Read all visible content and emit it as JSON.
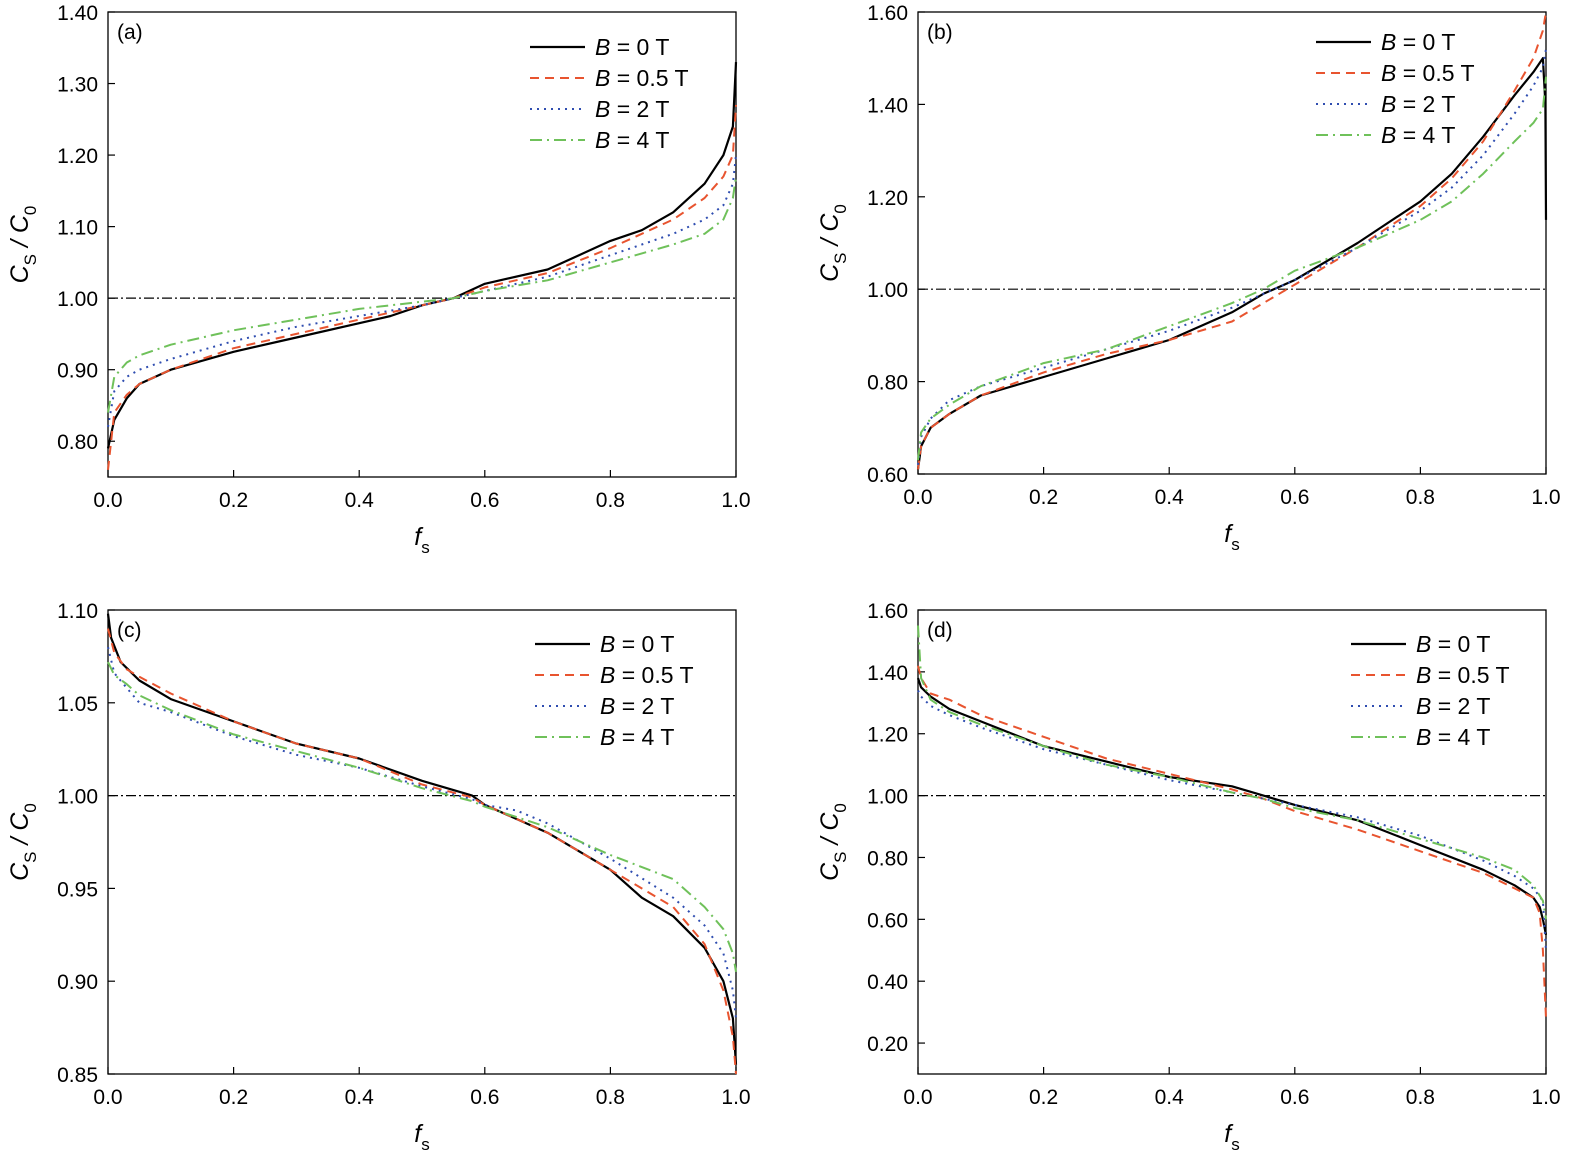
{
  "series_styles": [
    {
      "color": "#000000",
      "dash": "none"
    },
    {
      "color": "#e8542f",
      "dash": "9,6"
    },
    {
      "color": "#2f4db0",
      "dash": "2,5"
    },
    {
      "color": "#6fc15a",
      "dash": "12,5,2,5"
    }
  ],
  "reference_line_color": "#000000",
  "chart_data": [
    {
      "id": "a",
      "type": "line",
      "panel_label": "(a)",
      "xlabel": "f",
      "xlabel_sub": "s",
      "ylabel": "C",
      "ylabel_sub": "S",
      "ylabel_mid": " / C",
      "ylabel_sub2": "0",
      "xlim": [
        0,
        1
      ],
      "ylim": [
        0.75,
        1.4
      ],
      "xticks": [
        0,
        0.2,
        0.4,
        0.6,
        0.8,
        1.0
      ],
      "xtick_labels": [
        "0.0",
        "0.2",
        "0.4",
        "0.6",
        "0.8",
        "1.0"
      ],
      "yticks": [
        0.8,
        0.9,
        1.0,
        1.1,
        1.2,
        1.3,
        1.4
      ],
      "ytick_labels": [
        "0.80",
        "0.90",
        "1.00",
        "1.10",
        "1.20",
        "1.30",
        "1.40"
      ],
      "reference_y": 1.0,
      "legend_position": "top-right",
      "series": [
        {
          "name": "B = 0 T",
          "legend_var": "B",
          "legend_rest": " = 0 T",
          "x": [
            0,
            0.01,
            0.03,
            0.05,
            0.1,
            0.2,
            0.3,
            0.4,
            0.45,
            0.5,
            0.55,
            0.6,
            0.7,
            0.75,
            0.8,
            0.85,
            0.9,
            0.95,
            0.98,
            0.995,
            1.0
          ],
          "y": [
            0.79,
            0.83,
            0.86,
            0.88,
            0.9,
            0.925,
            0.945,
            0.965,
            0.975,
            0.99,
            1.0,
            1.02,
            1.04,
            1.06,
            1.08,
            1.095,
            1.12,
            1.16,
            1.2,
            1.24,
            1.33
          ]
        },
        {
          "name": "B = 0.5 T",
          "legend_var": "B",
          "legend_rest": " = 0.5 T",
          "x": [
            0,
            0.01,
            0.03,
            0.05,
            0.1,
            0.2,
            0.3,
            0.4,
            0.5,
            0.55,
            0.6,
            0.7,
            0.8,
            0.9,
            0.95,
            0.98,
            0.995,
            1.0
          ],
          "y": [
            0.76,
            0.84,
            0.865,
            0.88,
            0.9,
            0.93,
            0.95,
            0.97,
            0.99,
            1.0,
            1.015,
            1.035,
            1.07,
            1.11,
            1.14,
            1.17,
            1.2,
            1.27
          ]
        },
        {
          "name": "B = 2 T",
          "legend_var": "B",
          "legend_rest": " = 2 T",
          "x": [
            0,
            0.01,
            0.03,
            0.05,
            0.1,
            0.2,
            0.3,
            0.4,
            0.5,
            0.55,
            0.6,
            0.7,
            0.8,
            0.9,
            0.95,
            0.98,
            0.995,
            1.0
          ],
          "y": [
            0.82,
            0.87,
            0.89,
            0.9,
            0.915,
            0.94,
            0.96,
            0.975,
            0.99,
            1.0,
            1.01,
            1.03,
            1.06,
            1.09,
            1.11,
            1.13,
            1.16,
            1.2
          ]
        },
        {
          "name": "B = 4 T",
          "legend_var": "B",
          "legend_rest": " = 4 T",
          "x": [
            0,
            0.01,
            0.03,
            0.05,
            0.1,
            0.2,
            0.3,
            0.4,
            0.5,
            0.55,
            0.6,
            0.7,
            0.8,
            0.9,
            0.95,
            0.98,
            0.995,
            1.0
          ],
          "y": [
            0.84,
            0.89,
            0.91,
            0.92,
            0.935,
            0.955,
            0.97,
            0.985,
            0.995,
            1.0,
            1.01,
            1.025,
            1.05,
            1.075,
            1.09,
            1.11,
            1.14,
            1.17
          ]
        }
      ]
    },
    {
      "id": "b",
      "type": "line",
      "panel_label": "(b)",
      "xlabel": "f",
      "xlabel_sub": "s",
      "ylabel": "C",
      "ylabel_sub": "S",
      "ylabel_mid": " / C",
      "ylabel_sub2": "0",
      "xlim": [
        0,
        1
      ],
      "ylim": [
        0.6,
        1.6
      ],
      "xticks": [
        0,
        0.2,
        0.4,
        0.6,
        0.8,
        1.0
      ],
      "xtick_labels": [
        "0.0",
        "0.2",
        "0.4",
        "0.6",
        "0.8",
        "1.0"
      ],
      "yticks": [
        0.6,
        0.8,
        1.0,
        1.2,
        1.4,
        1.6
      ],
      "ytick_labels": [
        "0.60",
        "0.80",
        "1.00",
        "1.20",
        "1.40",
        "1.60"
      ],
      "reference_y": 1.0,
      "legend_position": "top-right",
      "series": [
        {
          "name": "B = 0 T",
          "legend_var": "B",
          "legend_rest": " = 0 T",
          "x": [
            0,
            0.005,
            0.02,
            0.05,
            0.1,
            0.2,
            0.3,
            0.4,
            0.5,
            0.55,
            0.6,
            0.7,
            0.8,
            0.85,
            0.9,
            0.95,
            0.98,
            0.995,
            0.999,
            1.0
          ],
          "y": [
            0.61,
            0.66,
            0.7,
            0.73,
            0.77,
            0.81,
            0.85,
            0.89,
            0.95,
            0.99,
            1.02,
            1.1,
            1.19,
            1.25,
            1.33,
            1.42,
            1.47,
            1.5,
            1.4,
            1.15
          ]
        },
        {
          "name": "B = 0.5 T",
          "legend_var": "B",
          "legend_rest": " = 0.5 T",
          "x": [
            0,
            0.005,
            0.02,
            0.05,
            0.1,
            0.2,
            0.3,
            0.4,
            0.5,
            0.55,
            0.6,
            0.7,
            0.8,
            0.85,
            0.9,
            0.95,
            0.98,
            0.995,
            1.0
          ],
          "y": [
            0.61,
            0.66,
            0.7,
            0.73,
            0.77,
            0.82,
            0.86,
            0.89,
            0.93,
            0.97,
            1.01,
            1.09,
            1.18,
            1.24,
            1.32,
            1.43,
            1.5,
            1.56,
            1.6
          ]
        },
        {
          "name": "B = 2 T",
          "legend_var": "B",
          "legend_rest": " = 2 T",
          "x": [
            0,
            0.005,
            0.02,
            0.05,
            0.1,
            0.2,
            0.3,
            0.4,
            0.5,
            0.55,
            0.6,
            0.7,
            0.8,
            0.85,
            0.9,
            0.95,
            0.98,
            0.995,
            1.0
          ],
          "y": [
            0.62,
            0.68,
            0.72,
            0.76,
            0.79,
            0.83,
            0.87,
            0.91,
            0.96,
            0.99,
            1.02,
            1.09,
            1.17,
            1.22,
            1.29,
            1.38,
            1.44,
            1.48,
            1.52
          ]
        },
        {
          "name": "B = 4 T",
          "legend_var": "B",
          "legend_rest": " = 4 T",
          "x": [
            0,
            0.005,
            0.02,
            0.05,
            0.1,
            0.2,
            0.3,
            0.4,
            0.5,
            0.55,
            0.6,
            0.7,
            0.8,
            0.85,
            0.9,
            0.95,
            0.98,
            0.995,
            1.0
          ],
          "y": [
            0.63,
            0.69,
            0.72,
            0.75,
            0.79,
            0.84,
            0.87,
            0.92,
            0.97,
            1.0,
            1.04,
            1.09,
            1.15,
            1.19,
            1.25,
            1.32,
            1.36,
            1.39,
            1.46
          ]
        }
      ]
    },
    {
      "id": "c",
      "type": "line",
      "panel_label": "(c)",
      "xlabel": "f",
      "xlabel_sub": "s",
      "ylabel": "C",
      "ylabel_sub": "S",
      "ylabel_mid": " / C",
      "ylabel_sub2": "0",
      "xlim": [
        0,
        1
      ],
      "ylim": [
        0.85,
        1.1
      ],
      "xticks": [
        0,
        0.2,
        0.4,
        0.6,
        0.8,
        1.0
      ],
      "xtick_labels": [
        "0.0",
        "0.2",
        "0.4",
        "0.6",
        "0.8",
        "1.0"
      ],
      "yticks": [
        0.85,
        0.9,
        0.95,
        1.0,
        1.05,
        1.1
      ],
      "ytick_labels": [
        "0.85",
        "0.90",
        "0.95",
        "1.00",
        "1.05",
        "1.10"
      ],
      "reference_y": 1.0,
      "legend_position": "top-right",
      "series": [
        {
          "name": "B = 0 T",
          "legend_var": "B",
          "legend_rest": " = 0 T",
          "x": [
            0,
            0.005,
            0.02,
            0.05,
            0.1,
            0.2,
            0.3,
            0.4,
            0.5,
            0.58,
            0.6,
            0.7,
            0.8,
            0.85,
            0.9,
            0.95,
            0.98,
            0.995,
            1.0
          ],
          "y": [
            1.098,
            1.085,
            1.072,
            1.062,
            1.052,
            1.04,
            1.028,
            1.02,
            1.008,
            1.0,
            0.995,
            0.98,
            0.96,
            0.945,
            0.935,
            0.918,
            0.9,
            0.88,
            0.855
          ]
        },
        {
          "name": "B = 0.5 T",
          "legend_var": "B",
          "legend_rest": " = 0.5 T",
          "x": [
            0,
            0.01,
            0.03,
            0.05,
            0.1,
            0.2,
            0.3,
            0.4,
            0.5,
            0.58,
            0.6,
            0.7,
            0.8,
            0.9,
            0.95,
            0.98,
            0.995,
            1.0
          ],
          "y": [
            1.09,
            1.077,
            1.068,
            1.064,
            1.055,
            1.04,
            1.028,
            1.02,
            1.006,
            0.999,
            0.995,
            0.98,
            0.96,
            0.94,
            0.92,
            0.895,
            0.87,
            0.85
          ]
        },
        {
          "name": "B = 2 T",
          "legend_var": "B",
          "legend_rest": " = 2 T",
          "x": [
            0,
            0.01,
            0.03,
            0.05,
            0.1,
            0.2,
            0.3,
            0.4,
            0.5,
            0.58,
            0.6,
            0.65,
            0.7,
            0.8,
            0.9,
            0.95,
            0.98,
            0.995,
            1.0
          ],
          "y": [
            1.08,
            1.066,
            1.058,
            1.05,
            1.045,
            1.032,
            1.022,
            1.015,
            1.005,
            0.998,
            0.995,
            0.992,
            0.985,
            0.966,
            0.945,
            0.93,
            0.915,
            0.895,
            0.88
          ]
        },
        {
          "name": "B = 4 T",
          "legend_var": "B",
          "legend_rest": " = 4 T",
          "x": [
            0,
            0.01,
            0.03,
            0.05,
            0.1,
            0.2,
            0.3,
            0.4,
            0.5,
            0.58,
            0.6,
            0.7,
            0.8,
            0.9,
            0.95,
            0.98,
            0.995,
            1.0
          ],
          "y": [
            1.072,
            1.065,
            1.06,
            1.054,
            1.046,
            1.033,
            1.024,
            1.015,
            1.004,
            0.997,
            0.994,
            0.983,
            0.968,
            0.955,
            0.94,
            0.928,
            0.915,
            0.905
          ]
        }
      ]
    },
    {
      "id": "d",
      "type": "line",
      "panel_label": "(d)",
      "xlabel": "f",
      "xlabel_sub": "s",
      "ylabel": "C",
      "ylabel_sub": "S",
      "ylabel_mid": " / C",
      "ylabel_sub2": "0",
      "xlim": [
        0,
        1
      ],
      "ylim": [
        0.1,
        1.6
      ],
      "xticks": [
        0,
        0.2,
        0.4,
        0.6,
        0.8,
        1.0
      ],
      "xtick_labels": [
        "0.0",
        "0.2",
        "0.4",
        "0.6",
        "0.8",
        "1.0"
      ],
      "yticks": [
        0.2,
        0.4,
        0.6,
        0.8,
        1.0,
        1.2,
        1.4,
        1.6
      ],
      "ytick_labels": [
        "0.20",
        "0.40",
        "0.60",
        "0.80",
        "1.00",
        "1.20",
        "1.40",
        "1.60"
      ],
      "reference_y": 1.0,
      "legend_position": "top-right",
      "series": [
        {
          "name": "B = 0 T",
          "legend_var": "B",
          "legend_rest": " = 0 T",
          "x": [
            0,
            0.005,
            0.02,
            0.05,
            0.1,
            0.2,
            0.3,
            0.4,
            0.5,
            0.55,
            0.6,
            0.7,
            0.8,
            0.9,
            0.95,
            0.98,
            0.99,
            0.995,
            1.0
          ],
          "y": [
            1.38,
            1.35,
            1.32,
            1.28,
            1.24,
            1.16,
            1.11,
            1.06,
            1.03,
            1.0,
            0.97,
            0.92,
            0.84,
            0.76,
            0.71,
            0.67,
            0.64,
            0.6,
            0.55
          ]
        },
        {
          "name": "B = 0.5 T",
          "legend_var": "B",
          "legend_rest": " = 0.5 T",
          "x": [
            0,
            0.005,
            0.02,
            0.05,
            0.1,
            0.2,
            0.3,
            0.4,
            0.5,
            0.55,
            0.6,
            0.7,
            0.8,
            0.9,
            0.95,
            0.98,
            0.99,
            0.995,
            1.0
          ],
          "y": [
            1.42,
            1.38,
            1.33,
            1.31,
            1.26,
            1.19,
            1.12,
            1.07,
            1.02,
            0.99,
            0.95,
            0.89,
            0.82,
            0.75,
            0.7,
            0.67,
            0.62,
            0.5,
            0.28
          ]
        },
        {
          "name": "B = 2 T",
          "legend_var": "B",
          "legend_rest": " = 2 T",
          "x": [
            0,
            0.005,
            0.02,
            0.05,
            0.1,
            0.2,
            0.3,
            0.4,
            0.5,
            0.55,
            0.6,
            0.7,
            0.8,
            0.9,
            0.95,
            0.98,
            0.995,
            1.0
          ],
          "y": [
            1.34,
            1.32,
            1.29,
            1.26,
            1.22,
            1.15,
            1.1,
            1.05,
            1.01,
            0.99,
            0.97,
            0.93,
            0.87,
            0.79,
            0.74,
            0.7,
            0.66,
            0.5
          ]
        },
        {
          "name": "B = 4 T",
          "legend_var": "B",
          "legend_rest": " = 4 T",
          "x": [
            0,
            0.005,
            0.02,
            0.05,
            0.1,
            0.2,
            0.3,
            0.4,
            0.5,
            0.55,
            0.6,
            0.7,
            0.8,
            0.9,
            0.95,
            0.98,
            0.995,
            1.0
          ],
          "y": [
            1.55,
            1.38,
            1.31,
            1.27,
            1.23,
            1.16,
            1.1,
            1.06,
            1.01,
            0.99,
            0.96,
            0.92,
            0.86,
            0.8,
            0.76,
            0.71,
            0.66,
            0.6
          ]
        }
      ]
    }
  ]
}
